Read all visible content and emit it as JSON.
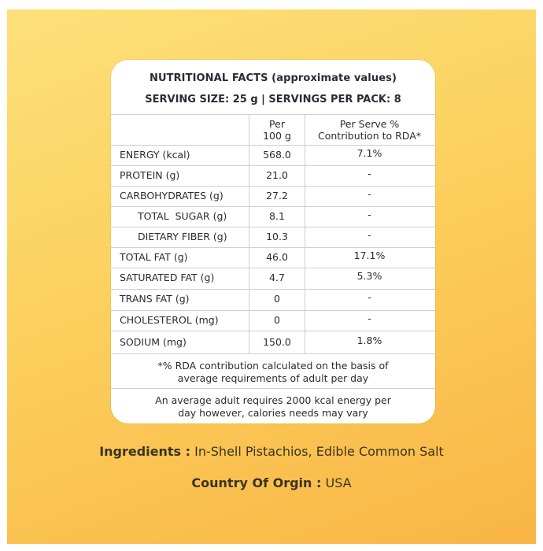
{
  "panel": {
    "title": "NUTRITIONAL FACTS (approximate values)",
    "serving": "SERVING SIZE: 25 g | SERVINGS PER PACK: 8"
  },
  "table": {
    "col1_header_line1": "Per",
    "col1_header_line2": "100 g",
    "col2_header_line1": "Per Serve %",
    "col2_header_line2": "Contribution to RDA*",
    "rows": [
      {
        "name": "ENERGY (kcal)",
        "per100": "568.0",
        "rda": "7.1%"
      },
      {
        "name": "PROTEIN (g)",
        "per100": "21.0",
        "rda": "-"
      },
      {
        "name": "CARBOHYDRATES (g)",
        "per100": "27.2",
        "rda": "-"
      },
      {
        "name": "TOTAL  SUGAR (g)",
        "per100": "8.1",
        "rda": "-"
      },
      {
        "name": "DIETARY FIBER (g)",
        "per100": "10.3",
        "rda": "-"
      },
      {
        "name": "TOTAL FAT (g)",
        "per100": "46.0",
        "rda": "17.1%"
      },
      {
        "name": "SATURATED FAT (g)",
        "per100": "4.7",
        "rda": "5.3%"
      },
      {
        "name": "TRANS FAT (g)",
        "per100": "0",
        "rda": "-"
      },
      {
        "name": "CHOLESTEROL (mg)",
        "per100": "0",
        "rda": "-"
      },
      {
        "name": "SODIUM (mg)",
        "per100": "150.0",
        "rda": "1.8%"
      }
    ]
  },
  "notes": {
    "rda_line1": "*% RDA contribution calculated on the basis of",
    "rda_line2": "average requirements of adult per day",
    "adult_line1": "An average adult requires 2000 kcal energy per",
    "adult_line2": "day however, calories needs may vary"
  },
  "ingredients": {
    "label": "Ingredients :",
    "value": " In-Shell Pistachios, Edible Common Salt"
  },
  "origin": {
    "label": "Country Of Orgin :",
    "value": " USA"
  }
}
